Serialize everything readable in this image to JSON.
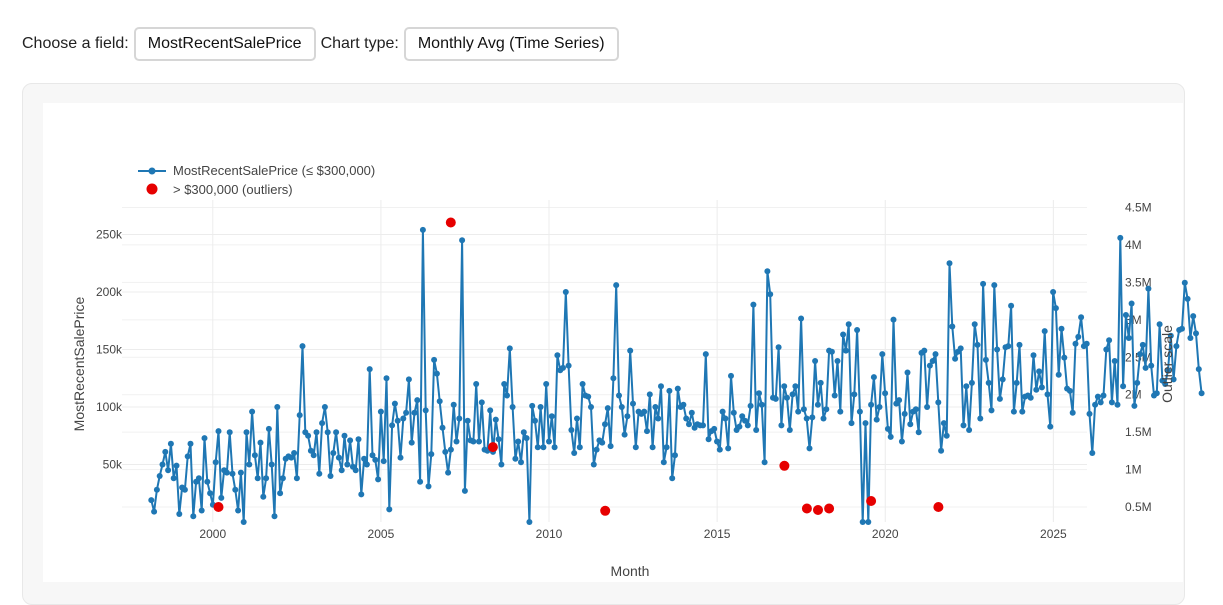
{
  "controls": {
    "field_label": "Choose a field:",
    "field_value": "MostRecentSalePrice",
    "chart_label": "Chart type:",
    "chart_value": "Monthly Avg (Time Series)"
  },
  "colors": {
    "line": "#1f77b4",
    "outlier": "#e60000",
    "grid": "#ececec"
  },
  "chart_data": {
    "type": "line",
    "xlabel": "Month",
    "ylabel": "MostRecentSalePrice",
    "y2label": "Outlier scale",
    "xlim": [
      1997.3,
      2026.0
    ],
    "ylim": [
      0,
      280000
    ],
    "y2lim": [
      300000,
      4600000
    ],
    "x_ticks": [
      2000,
      2005,
      2010,
      2015,
      2020,
      2025
    ],
    "y_ticks": [
      50000,
      100000,
      150000,
      200000,
      250000
    ],
    "y_tick_labels": [
      "50k",
      "100k",
      "150k",
      "200k",
      "250k"
    ],
    "y2_ticks": [
      500000,
      1000000,
      1500000,
      2000000,
      2500000,
      3000000,
      3500000,
      4000000,
      4500000
    ],
    "y2_tick_labels": [
      "0.5M",
      "1M",
      "1.5M",
      "2M",
      "2.5M",
      "3M",
      "3.5M",
      "4M",
      "4.5M"
    ],
    "x_start": 1998.17,
    "x_step": 0.0833,
    "legend_position": "top-left",
    "series": [
      {
        "name": "MostRecentSalePrice (≤ $300,000)",
        "values": [
          19000,
          9000,
          28000,
          40000,
          50000,
          61000,
          45000,
          68000,
          38000,
          49000,
          7000,
          30000,
          28000,
          57000,
          68000,
          5000,
          35000,
          38000,
          10000,
          73000,
          35000,
          25000,
          15000,
          52000,
          79000,
          21000,
          45000,
          43000,
          78000,
          42000,
          28000,
          10000,
          43000,
          0,
          78000,
          50000,
          96000,
          58000,
          38000,
          69000,
          22000,
          38000,
          81000,
          50000,
          5000,
          100000,
          25000,
          38000,
          55000,
          57000,
          56000,
          60000,
          38000,
          93000,
          153000,
          78000,
          75000,
          62000,
          58000,
          78000,
          42000,
          86000,
          100000,
          78000,
          40000,
          60000,
          78000,
          56000,
          45000,
          75000,
          50000,
          71000,
          48000,
          45000,
          72000,
          24000,
          55000,
          50000,
          133000,
          58000,
          54000,
          37000,
          96000,
          53000,
          125000,
          11000,
          84000,
          103000,
          88000,
          56000,
          90000,
          95000,
          124000,
          69000,
          95000,
          106000,
          35000,
          254000,
          97000,
          31000,
          59000,
          141000,
          129000,
          105000,
          82000,
          61000,
          43000,
          63000,
          102000,
          70000,
          90000,
          245000,
          27000,
          88000,
          71000,
          70000,
          120000,
          70000,
          104000,
          63000,
          62000,
          97000,
          61000,
          89000,
          72000,
          50000,
          120000,
          110000,
          151000,
          100000,
          55000,
          70000,
          52000,
          78000,
          73000,
          0,
          101000,
          88000,
          65000,
          100000,
          65000,
          120000,
          70000,
          92000,
          65000,
          145000,
          132000,
          134000,
          200000,
          136000,
          80000,
          60000,
          90000,
          65000,
          120000,
          110000,
          109000,
          100000,
          50000,
          63000,
          71000,
          69000,
          85000,
          99000,
          66000,
          125000,
          206000,
          110000,
          100000,
          76000,
          92000,
          149000,
          103000,
          65000,
          96000,
          94000,
          96000,
          79000,
          111000,
          65000,
          100000,
          90000,
          118000,
          52000,
          65000,
          114000,
          38000,
          58000,
          116000,
          100000,
          102000,
          90000,
          85000,
          95000,
          82000,
          85000,
          84000,
          84000,
          146000,
          72000,
          79000,
          81000,
          70000,
          63000,
          96000,
          90000,
          64000,
          127000,
          95000,
          80000,
          83000,
          92000,
          88000,
          84000,
          101000,
          189000,
          80000,
          112000,
          102000,
          52000,
          218000,
          198000,
          108000,
          107000,
          152000,
          84000,
          118000,
          108000,
          80000,
          111000,
          118000,
          96000,
          177000,
          98000,
          90000,
          64000,
          91000,
          140000,
          102000,
          121000,
          90000,
          98000,
          149000,
          148000,
          110000,
          140000,
          96000,
          163000,
          149000,
          172000,
          86000,
          111000,
          167000,
          96000,
          0,
          86000,
          0,
          102000,
          126000,
          89000,
          100000,
          146000,
          112000,
          81000,
          74000,
          176000,
          103000,
          106000,
          70000,
          94000,
          130000,
          85000,
          96000,
          98000,
          78000,
          147000,
          149000,
          100000,
          136000,
          140000,
          146000,
          104000,
          62000,
          86000,
          75000,
          225000,
          170000,
          142000,
          148000,
          151000,
          84000,
          118000,
          80000,
          121000,
          172000,
          154000,
          90000,
          207000,
          141000,
          121000,
          97000,
          206000,
          150000,
          107000,
          124000,
          152000,
          153000,
          188000,
          96000,
          121000,
          154000,
          96000,
          109000,
          110000,
          108000,
          145000,
          115000,
          131000,
          117000,
          166000,
          111000,
          83000,
          200000,
          186000,
          128000,
          168000,
          143000,
          116000,
          114000,
          95000,
          155000,
          161000,
          178000,
          153000,
          155000,
          94000,
          60000,
          102000,
          109000,
          104000,
          110000,
          150000,
          158000,
          104000,
          140000,
          102000,
          247000,
          118000,
          180000,
          160000,
          190000,
          101000,
          121000,
          146000,
          154000,
          134000,
          203000,
          136000,
          110000,
          112000,
          172000,
          123000,
          120000,
          132000,
          162000,
          124000,
          153000,
          167000,
          168000,
          208000,
          194000,
          160000,
          179000,
          164000,
          133000,
          112000
        ]
      },
      {
        "name": "> $300,000 (outliers)",
        "points": [
          [
            2000.17,
            500000
          ],
          [
            2007.08,
            4300000
          ],
          [
            2008.33,
            1300000
          ],
          [
            2011.67,
            450000
          ],
          [
            2017.0,
            1050000
          ],
          [
            2017.67,
            480000
          ],
          [
            2018.0,
            460000
          ],
          [
            2018.33,
            480000
          ],
          [
            2019.58,
            580000
          ],
          [
            2021.58,
            500000
          ]
        ]
      }
    ]
  }
}
